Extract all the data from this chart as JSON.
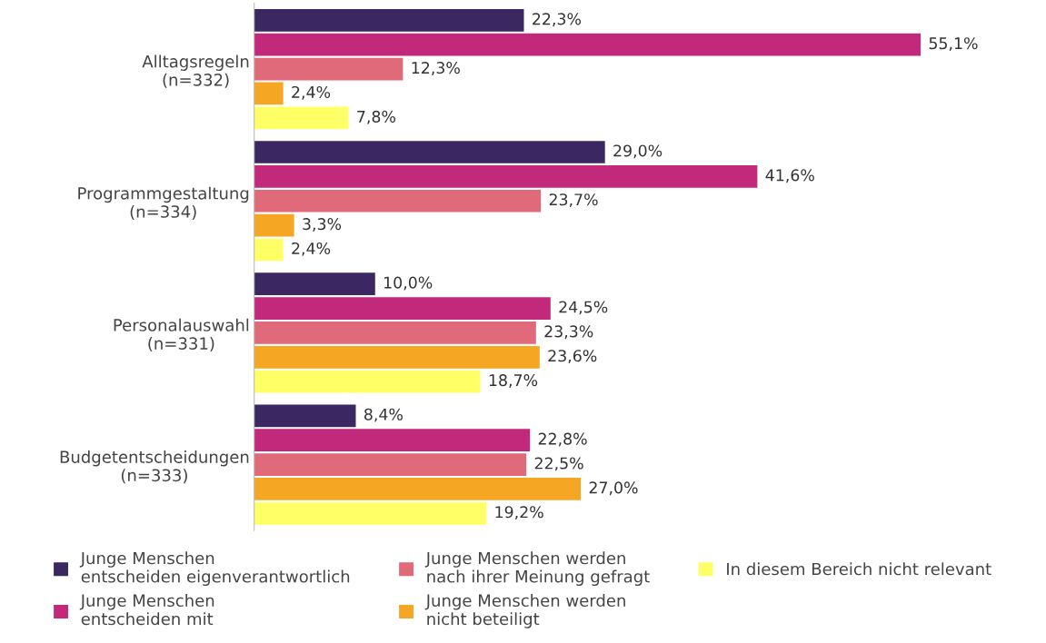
{
  "chart_data": {
    "type": "bar",
    "orientation": "horizontal",
    "categories": [
      "Alltagsregeln\n(n=332)",
      "Programmgestaltung\n(n=334)",
      "Personalauswahl\n(n=331)",
      "Budgetentscheidungen\n(n=333)"
    ],
    "series": [
      {
        "name": "Junge Menschen\nentscheiden eigenverantwortlich",
        "color": "#3b2862",
        "values": [
          22.3,
          29.0,
          10.0,
          8.4
        ],
        "value_labels": [
          "22,3%",
          "29,0%",
          "10,0%",
          "8,4%"
        ]
      },
      {
        "name": "Junge Menschen\nentscheiden mit",
        "color": "#c2297a",
        "values": [
          55.1,
          41.6,
          24.5,
          22.8
        ],
        "value_labels": [
          "55,1%",
          "41,6%",
          "24,5%",
          "22,8%"
        ]
      },
      {
        "name": "Junge Menschen werden\nnach ihrer Meinung gefragt",
        "color": "#e0697a",
        "values": [
          12.3,
          23.7,
          23.3,
          22.5
        ],
        "value_labels": [
          "12,3%",
          "23,7%",
          "23,3%",
          "22,5%"
        ]
      },
      {
        "name": "Junge Menschen werden\nnicht beteiligt",
        "color": "#f5a623",
        "values": [
          2.4,
          3.3,
          23.6,
          27.0
        ],
        "value_labels": [
          "2,4%",
          "3,3%",
          "23,6%",
          "27,0%"
        ]
      },
      {
        "name": "In diesem Bereich nicht relevant",
        "color": "#ffff66",
        "values": [
          7.8,
          2.4,
          18.7,
          19.2
        ],
        "value_labels": [
          "7,8%",
          "2,4%",
          "18,7%",
          "19,2%"
        ]
      }
    ],
    "tick_labels": "y",
    "legend": "bottom",
    "grid": false
  }
}
